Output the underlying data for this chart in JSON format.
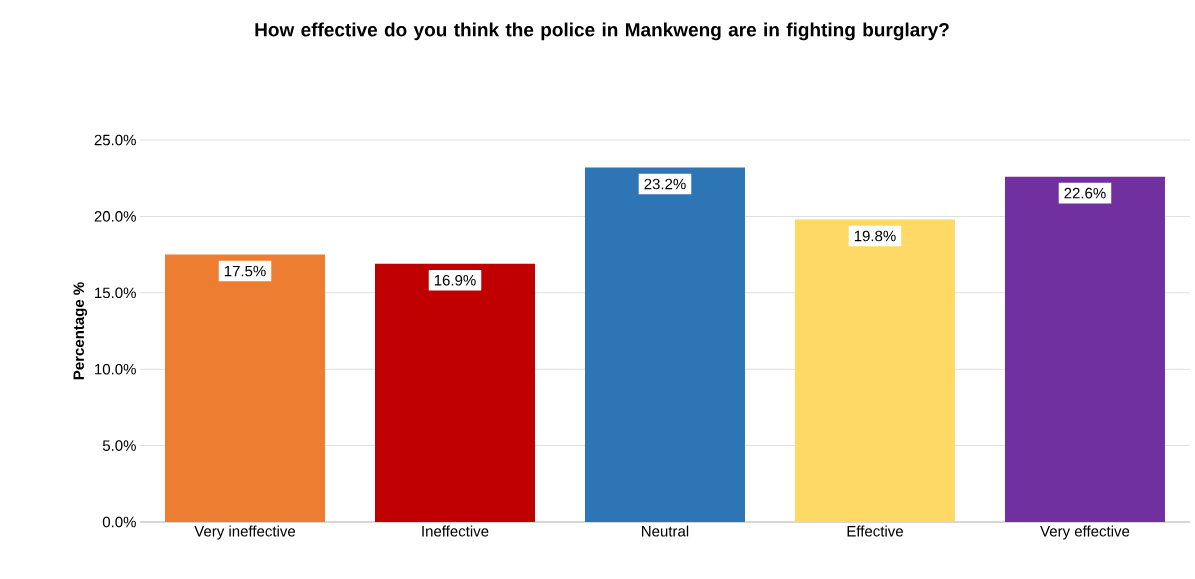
{
  "chart_data": {
    "type": "bar",
    "title": "How effective do you think the police in Mankweng are in fighting burglary?",
    "ylabel": "Percentage %",
    "categories": [
      "Very ineffective",
      "Ineffective",
      "Neutral",
      "Effective",
      "Very effective"
    ],
    "values": [
      17.5,
      16.9,
      23.2,
      19.8,
      22.6
    ],
    "value_labels": [
      "17.5%",
      "16.9%",
      "23.2%",
      "19.8%",
      "22.6%"
    ],
    "colors": [
      "#ed7d31",
      "#c00000",
      "#2e75b6",
      "#ffd966",
      "#7030a0"
    ],
    "ylim": [
      0,
      25
    ],
    "yticks": [
      {
        "value": 0,
        "label": "0.0%"
      },
      {
        "value": 5,
        "label": "5.0%"
      },
      {
        "value": 10,
        "label": "10.0%"
      },
      {
        "value": 15,
        "label": "15.0%"
      },
      {
        "value": 20,
        "label": "20.0%"
      },
      {
        "value": 25,
        "label": "25.0%"
      }
    ],
    "grid": "y"
  }
}
